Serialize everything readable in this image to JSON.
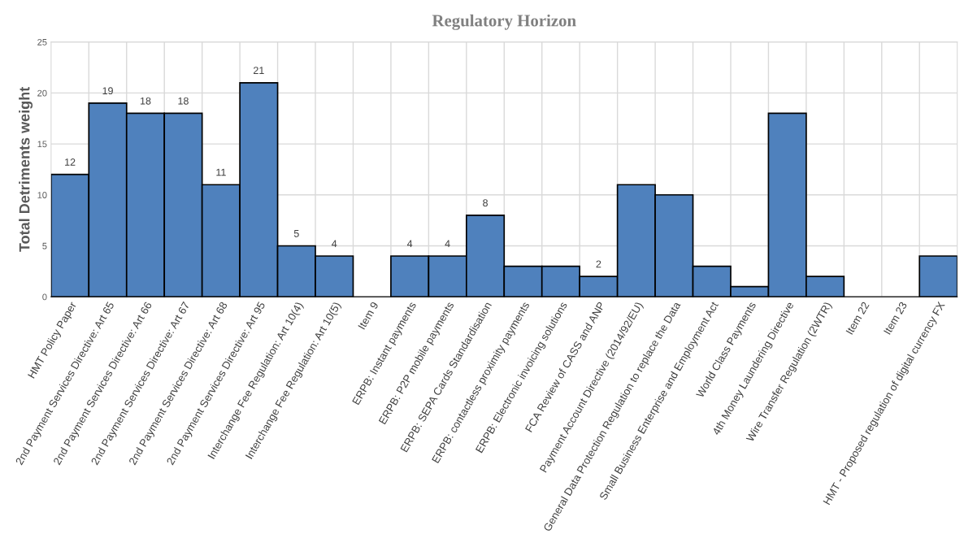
{
  "chart_data": {
    "type": "bar",
    "title": "Regulatory Horizon",
    "ylabel": "Total Detriments weight",
    "categories": [
      "HMT Policy Paper",
      "2nd Payment Services Directive: Art 65",
      "2nd Payment Services Directive: Art 66",
      "2nd Payment Services Directive: Art 67",
      "2nd Payment Services Directive: Art 68",
      "2nd Payment Services Directive: Art 95",
      "Interchange Fee Regulation: Art 10(4)",
      "Interchange Fee Regulation: Art 10(5)",
      "Item 9",
      "ERPB: Instant payments",
      "ERPB: P2P mobile payments",
      "ERPB: SEPA Cards Standardisation",
      "ERPB: contactless proximity payments",
      "ERPB: Electronic invoicing solutions",
      "FCA Review of CASS and ANP",
      "Payment Account Directive (2014/92/EU)",
      "General Data Protection Regulation to replace the Data",
      "Small Business Enterprise and Employment Act",
      "World Class Payments",
      "4th Money Laundering Directive",
      "Wire Transfer Regulation (2WTR)",
      "Item 22",
      "Item 23",
      "HMT - Proposed regulation of digital currency FX"
    ],
    "values": [
      12,
      19,
      18,
      18,
      11,
      21,
      5,
      4,
      0,
      4,
      4,
      8,
      3,
      3,
      2,
      11,
      10,
      3,
      1,
      18,
      2,
      0,
      0,
      4
    ],
    "value_labels": [
      "12",
      "19",
      "18",
      "18",
      "11",
      "21",
      "5",
      "4",
      null,
      "4",
      "4",
      "8",
      null,
      null,
      "2",
      null,
      null,
      null,
      null,
      null,
      null,
      null,
      null,
      null
    ],
    "color": "#4f81bd",
    "ylim": [
      0,
      25
    ],
    "yticks": [
      0,
      5,
      10,
      15,
      20,
      25
    ],
    "grid": true
  }
}
